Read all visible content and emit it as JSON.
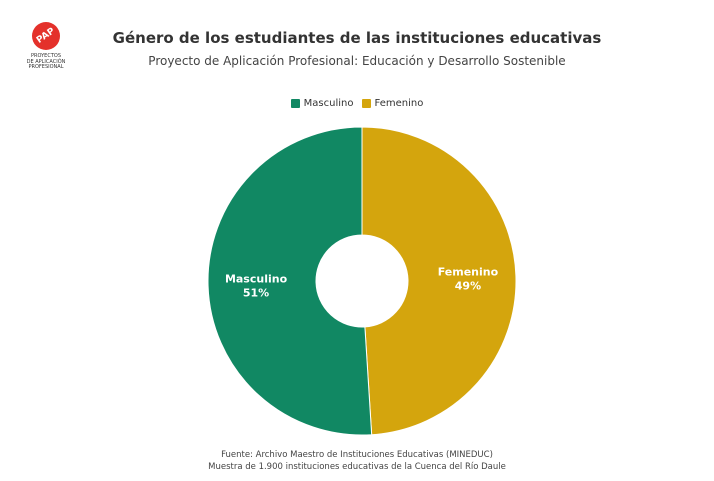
{
  "logo": {
    "badge_text": "PAP",
    "text": "PROYECTOS\nDE APLICACIÓN\nPROFESIONAL",
    "color": "#e4312b"
  },
  "chart_data": {
    "type": "pie",
    "style": "donut",
    "title": "Género de los estudiantes de las instituciones educativas",
    "subtitle": "Proyecto de Aplicación Profesional: Educación y Desarrollo Sostenible",
    "legend_position": "top",
    "slices": [
      {
        "label": "Masculino",
        "value": 51,
        "display": "51%",
        "color": "#118863"
      },
      {
        "label": "Femenino",
        "value": 49,
        "display": "49%",
        "color": "#d4a50d"
      }
    ]
  },
  "footer": {
    "source": "Fuente: Archivo Maestro de Instituciones Educativas (MINEDUC)",
    "sample": "Muestra de 1.900 instituciones educativas de la Cuenca del Río Daule"
  }
}
